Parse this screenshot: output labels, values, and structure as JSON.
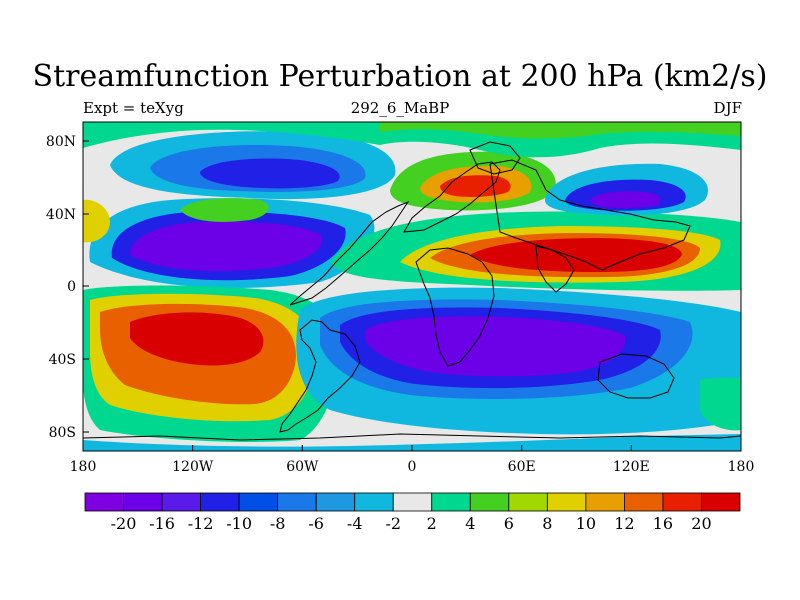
{
  "title": "Streamfunction Perturbation at 200 hPa (km2/s)",
  "subtitle_left": "Expt = teXyg",
  "subtitle_center": "292_6_MaBP",
  "subtitle_right": "DJF",
  "lat_ticks": [
    "80N",
    "40N",
    "0",
    "40S",
    "80S"
  ],
  "lon_ticks": [
    "180",
    "120W",
    "60W",
    "0",
    "60E",
    "120E",
    "180"
  ],
  "colorbar": {
    "labels": [
      "-20",
      "-16",
      "-12",
      "-10",
      "-8",
      "-6",
      "-4",
      "-2",
      "2",
      "4",
      "6",
      "8",
      "10",
      "12",
      "16",
      "20"
    ],
    "colors": [
      "#7f00e0",
      "#6c00e6",
      "#5a1aea",
      "#2020e6",
      "#0050e8",
      "#1a78e8",
      "#1e98e0",
      "#10b8e0",
      "#e8e8e8",
      "#00d890",
      "#44d020",
      "#a0d800",
      "#e0d000",
      "#e8a000",
      "#e86000",
      "#e82000",
      "#d80000"
    ]
  },
  "map": {
    "projection": "cylindrical-equidistant",
    "lon_range": [
      -180,
      180
    ],
    "lat_range": [
      -90,
      90
    ],
    "variable": "streamfunction perturbation",
    "level_hPa": 200,
    "units": "km2/s"
  }
}
